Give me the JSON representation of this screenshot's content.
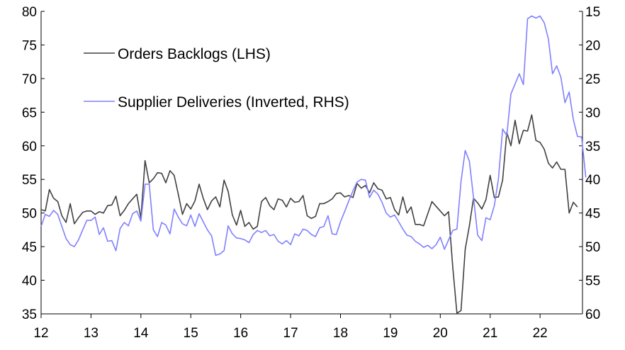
{
  "chart_data": {
    "type": "line",
    "left_axis": {
      "ylim": [
        35,
        80
      ],
      "ticks": [
        80,
        75,
        70,
        65,
        60,
        55,
        50,
        45,
        40,
        35
      ]
    },
    "right_axis": {
      "ylim": [
        15,
        60
      ],
      "inverted": true,
      "ticks": [
        15,
        20,
        25,
        30,
        35,
        40,
        45,
        50,
        55,
        60
      ]
    },
    "x_axis": {
      "xlim": [
        12,
        22.85
      ],
      "ticks": [
        12,
        13,
        14,
        15,
        16,
        17,
        18,
        19,
        20,
        21,
        22
      ],
      "tick_labels": [
        "12",
        "13",
        "14",
        "15",
        "16",
        "17",
        "18",
        "19",
        "20",
        "21",
        "22"
      ]
    },
    "legend": {
      "placement": "top-left"
    },
    "series": [
      {
        "name": "Orders Backlogs (LHS)",
        "axis": "left",
        "color": "#404040",
        "start": 12.0,
        "step": 0.08333,
        "values": [
          50.5,
          50.3,
          53.5,
          52.2,
          51.7,
          49.6,
          48.6,
          51.4,
          48.4,
          49.3,
          50.1,
          50.3,
          50.3,
          49.8,
          50.2,
          50.0,
          51.1,
          51.2,
          52.5,
          49.6,
          50.4,
          51.4,
          52.1,
          52.8,
          49.2,
          57.8,
          54.5,
          55.1,
          56.0,
          55.9,
          54.5,
          56.3,
          55.6,
          52.8,
          49.8,
          51.4,
          50.6,
          51.8,
          54.3,
          52.2,
          50.5,
          51.8,
          52.4,
          50.9,
          54.9,
          53.2,
          49.7,
          48.2,
          50.4,
          48.0,
          48.6,
          47.6,
          48.0,
          51.7,
          52.3,
          51.1,
          50.5,
          52.1,
          51.9,
          50.9,
          52.2,
          51.6,
          51.7,
          52.6,
          49.6,
          49.2,
          49.5,
          51.4,
          51.4,
          51.7,
          52.1,
          52.9,
          53.0,
          52.4,
          52.6,
          52.3,
          54.4,
          53.7,
          54.1,
          53.0,
          54.5,
          53.6,
          53.4,
          52.1,
          52.3,
          50.5,
          49.7,
          52.4,
          50.0,
          50.9,
          48.3,
          48.3,
          48.1,
          49.9,
          51.7,
          51.0,
          50.3,
          49.6,
          50.2,
          42.0,
          35.1,
          35.5,
          44.6,
          48.1,
          52.2,
          51.5,
          50.6,
          52.0,
          55.6,
          52.3,
          52.4,
          54.9,
          62.0,
          60.0,
          63.8,
          60.3,
          62.3,
          62.2,
          64.6,
          60.8,
          60.5,
          59.5,
          57.4,
          56.7,
          57.6,
          56.5,
          56.5,
          50.0,
          51.6,
          50.9
        ]
      },
      {
        "name": "Supplier Deliveries (Inverted, RHS)",
        "axis": "right",
        "color": "#8080ff",
        "start": 12.0,
        "step": 0.08333,
        "values": [
          47.0,
          45.2,
          45.5,
          44.6,
          45.2,
          47.0,
          48.8,
          49.7,
          50.0,
          49.0,
          47.5,
          46.1,
          46.1,
          45.6,
          48.2,
          47.2,
          49.2,
          49.1,
          50.6,
          47.3,
          46.4,
          46.9,
          45.1,
          44.7,
          46.2,
          40.7,
          40.7,
          47.5,
          48.5,
          46.4,
          46.8,
          48.1,
          44.4,
          45.6,
          46.6,
          46.9,
          45.3,
          47.0,
          45.1,
          46.3,
          47.5,
          48.4,
          51.3,
          51.1,
          50.6,
          46.9,
          48.1,
          48.7,
          48.8,
          49.0,
          49.4,
          48.2,
          47.6,
          47.9,
          47.6,
          48.4,
          48.2,
          49.2,
          49.6,
          49.1,
          49.7,
          48.1,
          48.4,
          47.4,
          47.6,
          48.2,
          48.5,
          47.2,
          47.0,
          45.4,
          48.1,
          48.2,
          46.3,
          44.8,
          43.2,
          41.7,
          40.4,
          40.0,
          40.1,
          42.7,
          41.6,
          42.2,
          43.4,
          45.0,
          45.6,
          45.3,
          46.3,
          47.4,
          48.3,
          48.5,
          49.2,
          49.6,
          50.1,
          49.8,
          50.3,
          49.7,
          48.6,
          50.4,
          49.0,
          47.6,
          47.4,
          40.3,
          35.7,
          37.3,
          42.7,
          48.3,
          49.1,
          45.7,
          46.0,
          43.9,
          39.9,
          32.5,
          33.5,
          27.3,
          25.8,
          24.3,
          25.9,
          16.1,
          15.7,
          16.0,
          15.7,
          16.7,
          19.1,
          24.3,
          23.1,
          24.8,
          28.6,
          27.0,
          31.1,
          33.6,
          33.7,
          39.7
        ]
      }
    ]
  }
}
